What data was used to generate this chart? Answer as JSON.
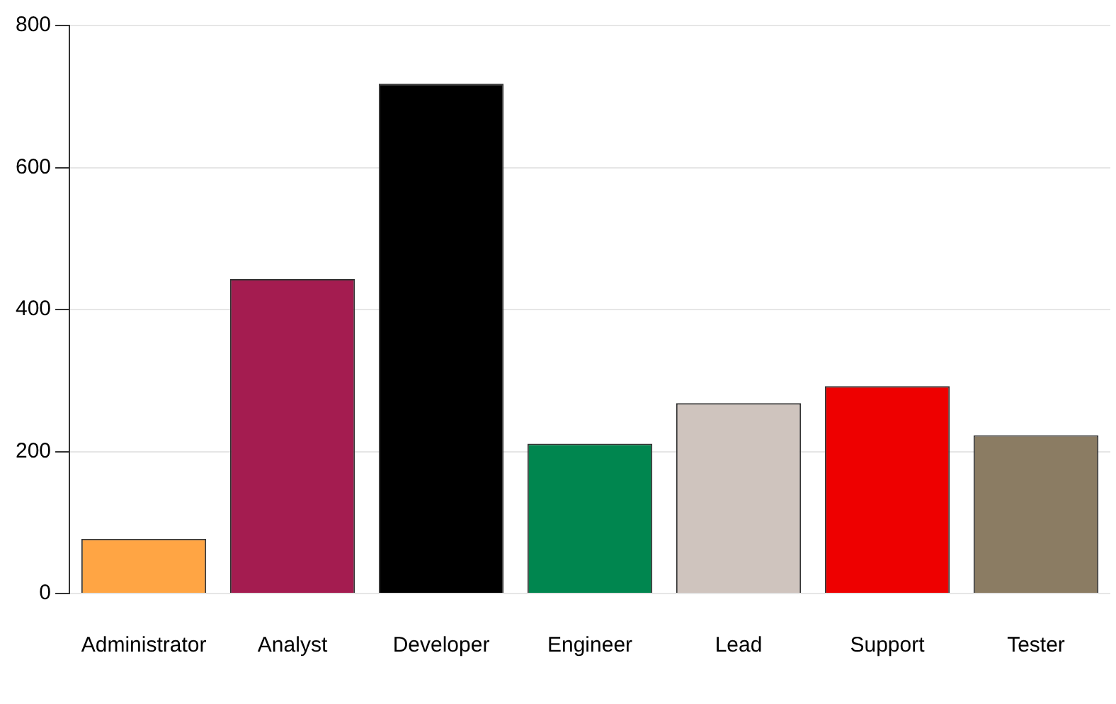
{
  "chart_data": {
    "type": "bar",
    "categories": [
      "Administrator",
      "Analyst",
      "Developer",
      "Engineer",
      "Lead",
      "Support",
      "Tester"
    ],
    "values": [
      77,
      443,
      718,
      211,
      268,
      292,
      223
    ],
    "colors": [
      "#ffa544",
      "#a41c50",
      "#000000",
      "#00864f",
      "#cfc4be",
      "#ee0000",
      "#8b7c63"
    ],
    "ylim": [
      0,
      800
    ],
    "yticks": [
      0,
      200,
      400,
      600,
      800
    ],
    "grid": "y",
    "legend": false
  }
}
